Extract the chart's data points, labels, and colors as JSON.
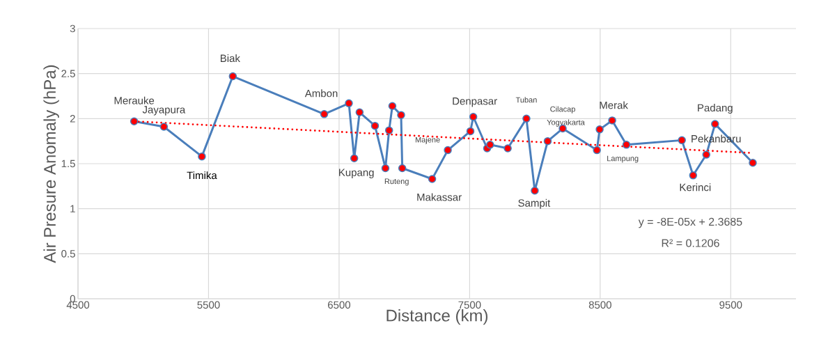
{
  "chart_data": {
    "type": "line",
    "xlabel": "Distance (km)",
    "ylabel": "Air Presure Anomaly (hPa)",
    "xlim": [
      4500,
      10000
    ],
    "xticks": [
      4500,
      5500,
      6500,
      7500,
      8500,
      9500
    ],
    "ylim": [
      0,
      3
    ],
    "yticks": [
      0,
      0.5,
      1,
      1.5,
      2,
      2.5,
      3
    ],
    "grid": true,
    "marker": "circle",
    "series": [
      {
        "color": "#4a7ebb",
        "x": [
          4930,
          5158,
          5449,
          5686,
          6386,
          6575,
          6616,
          6657,
          6775,
          6855,
          6883,
          6908,
          6975,
          6984,
          7213,
          7333,
          7506,
          7528,
          7634,
          7657,
          7792,
          7935,
          7999,
          8098,
          8213,
          8475,
          8496,
          8592,
          8701,
          9126,
          9212,
          9313,
          9380,
          9669
        ],
        "values": [
          1.97,
          1.91,
          1.58,
          2.47,
          2.05,
          2.17,
          1.56,
          2.07,
          1.92,
          1.45,
          1.87,
          2.14,
          2.04,
          1.45,
          1.33,
          1.65,
          1.86,
          2.02,
          1.67,
          1.71,
          1.67,
          2.0,
          1.2,
          1.75,
          1.89,
          1.65,
          1.88,
          1.98,
          1.71,
          1.76,
          1.37,
          1.6,
          1.94,
          1.51
        ]
      },
      {
        "type": "line",
        "color": "#ff0000",
        "line_style": "dotted",
        "marker": "none",
        "x": [
          4930,
          9645
        ],
        "values": [
          1.97,
          1.62
        ]
      }
    ],
    "annotations": [
      {
        "text": "Merauke",
        "x": 4930,
        "y": 1.97
      },
      {
        "text": "Jayapura",
        "x": 5158,
        "y": 1.91
      },
      {
        "text": "Timika",
        "x": 5449,
        "y": 1.58
      },
      {
        "text": "Biak",
        "x": 5686,
        "y": 2.47
      },
      {
        "text": "Ambon",
        "x": 6386,
        "y": 2.05
      },
      {
        "text": "Kupang",
        "x": 6616,
        "y": 1.56
      },
      {
        "text": "Ruteng",
        "x": 6984,
        "y": 1.45
      },
      {
        "text": "Makassar",
        "x": 7213,
        "y": 1.33
      },
      {
        "text": "Majene",
        "x": 7333,
        "y": 1.65
      },
      {
        "text": "Denpasar",
        "x": 7528,
        "y": 2.02
      },
      {
        "text": "Tuban",
        "x": 7935,
        "y": 2.0
      },
      {
        "text": "Yogyakarta",
        "x": 8098,
        "y": 1.75
      },
      {
        "text": "Cilacap",
        "x": 8213,
        "y": 1.89
      },
      {
        "text": "Sampit",
        "x": 7999,
        "y": 1.2
      },
      {
        "text": "Merak",
        "x": 8592,
        "y": 1.98
      },
      {
        "text": "Lampung",
        "x": 8475,
        "y": 1.65
      },
      {
        "text": "Kerinci",
        "x": 9212,
        "y": 1.37
      },
      {
        "text": "Pekanbaru",
        "x": 9313,
        "y": 1.6
      },
      {
        "text": "Padang",
        "x": 9380,
        "y": 1.94
      },
      "y = -8E-05x + 2.3685",
      "R² = 0.1206"
    ]
  }
}
